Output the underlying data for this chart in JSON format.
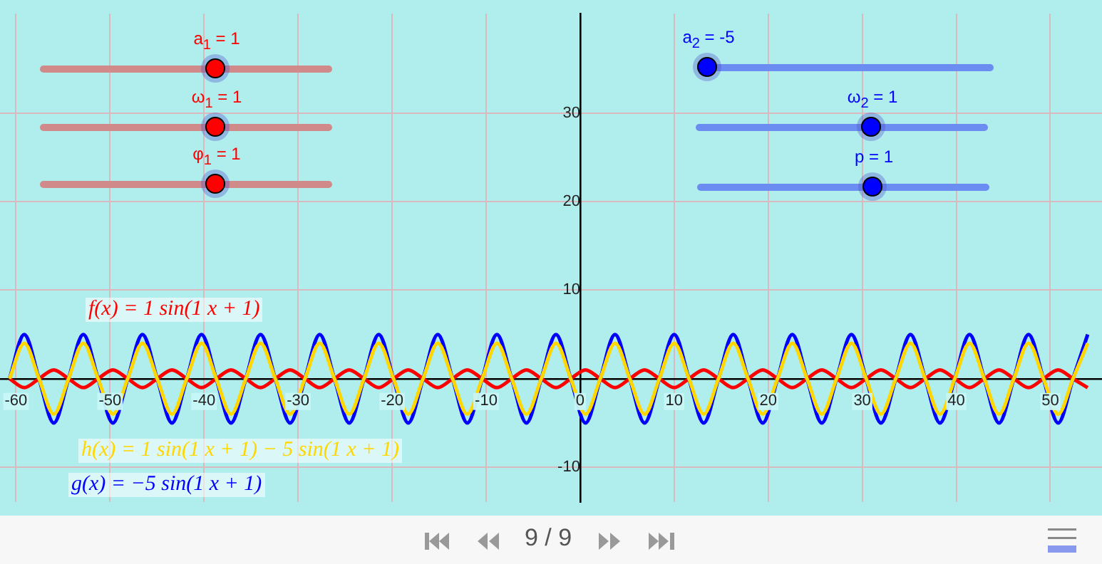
{
  "chart_data": {
    "type": "line",
    "x": [
      -60.69,
      -59.12,
      -57.55,
      -55.98,
      -54.41,
      -52.84,
      -51.27,
      -49.69,
      -48.12,
      -46.55,
      -44.98,
      -43.41,
      -41.84,
      -40.27,
      -38.7,
      -37.13,
      -35.56,
      -33.99,
      -32.42,
      -30.85,
      -29.27,
      -27.7,
      -26.13,
      -24.56,
      -22.99,
      -21.42,
      -19.85,
      -18.28,
      -16.71,
      -15.14,
      -13.57,
      -12.0,
      -10.42,
      -8.85,
      -7.28,
      -5.71,
      -4.14,
      -2.57,
      -1,
      0.57,
      2.14,
      3.71,
      5.28,
      6.85,
      8.42,
      10.0,
      11.57,
      13.14,
      14.71,
      16.28,
      17.85,
      19.42,
      20.99,
      22.56,
      24.13,
      25.7,
      27.27,
      28.85,
      30.42,
      31.99,
      33.56,
      35.13,
      36.7,
      38.27,
      39.84,
      41.41,
      42.98,
      44.55,
      46.12,
      47.69,
      49.27,
      50.84,
      52.41,
      53.98
    ],
    "series": [
      {
        "name": "h(x) = 1 sin(1 x + 1) − 5 sin(1 x + 1)",
        "color": "#ffd700",
        "values": [
          0,
          4,
          0,
          -4,
          0,
          4,
          0,
          -4,
          0,
          4,
          0,
          -4,
          0,
          4,
          0,
          -4,
          0,
          4,
          0,
          -4,
          0,
          4,
          0,
          -4,
          0,
          4,
          0,
          -4,
          0,
          4,
          0,
          -4,
          0,
          4,
          0,
          -4,
          0,
          4,
          0,
          -4,
          0,
          4,
          0,
          -4,
          0,
          4,
          0,
          -4,
          0,
          4,
          0,
          -4,
          0,
          4,
          0,
          -4,
          0,
          4,
          0,
          -4,
          0,
          4,
          0,
          -4,
          0,
          4,
          0,
          -4,
          0,
          4,
          0,
          -4,
          0,
          4
        ]
      },
      {
        "name": "g(x) = −5 sin(1 x + 1)",
        "color": "#0000ff",
        "values": [
          0,
          5,
          0,
          -5,
          0,
          5,
          0,
          -5,
          0,
          5,
          0,
          -5,
          0,
          5,
          0,
          -5,
          0,
          5,
          0,
          -5,
          0,
          5,
          0,
          -5,
          0,
          5,
          0,
          -5,
          0,
          5,
          0,
          -5,
          0,
          5,
          0,
          -5,
          0,
          5,
          0,
          -5,
          0,
          5,
          0,
          -5,
          0,
          5,
          0,
          -5,
          0,
          5,
          0,
          -5,
          0,
          5,
          0,
          -5,
          0,
          5,
          0,
          -5,
          0,
          5,
          0,
          -5,
          0,
          5,
          0,
          -5,
          0,
          5,
          0,
          -5,
          0,
          5
        ]
      },
      {
        "name": "f(x) = 1 sin(1 x + 1)",
        "color": "#ff0000",
        "values": [
          0,
          -1,
          0,
          1,
          0,
          -1,
          0,
          1,
          0,
          -1,
          0,
          1,
          0,
          -1,
          0,
          1,
          0,
          -1,
          0,
          1,
          0,
          -1,
          0,
          1,
          0,
          -1,
          0,
          1,
          0,
          -1,
          0,
          1,
          0,
          -1,
          0,
          1,
          0,
          -1,
          0,
          1,
          0,
          -1,
          0,
          1,
          0,
          -1,
          0,
          1,
          0,
          -1,
          0,
          1,
          0,
          -1,
          0,
          1,
          0,
          -1,
          0,
          1,
          0,
          -1,
          0,
          1,
          0,
          -1,
          0,
          1,
          0,
          -1,
          0,
          1,
          0,
          -1
        ]
      }
    ],
    "xlim": [
      -61.7,
      55.5
    ],
    "ylim": [
      -13.9,
      41.2
    ],
    "xticks": [
      -60,
      -50,
      -40,
      -30,
      -20,
      -10,
      0,
      10,
      20,
      30,
      40,
      50
    ],
    "yticks": [
      -10,
      10,
      20,
      30
    ],
    "grid": true,
    "legend": false,
    "marker": "none",
    "line_style": "solid",
    "annotations": [
      "a$_{1}$ = 1",
      "ω$_{1}$ = 1",
      "φ$_{1}$ = 1",
      "a$_{2}$ = -5",
      "ω$_{2}$ = 1",
      "p = 1",
      "9 / 9"
    ]
  }
}
